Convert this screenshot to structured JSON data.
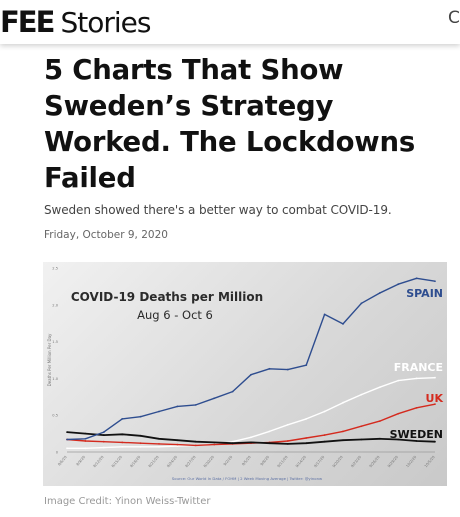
{
  "header": {
    "logo_bold": "FEE",
    "logo_text": "Stories",
    "search_glyph": "C",
    "search_icon": "search-icon"
  },
  "article": {
    "title": "5 Charts That Show Sweden’s Strategy Worked. The Lockdowns Failed",
    "subtitle": "Sweden showed there's a better way to combat COVID-19.",
    "date": "Friday, October 9, 2020",
    "image_credit": "Image Credit: Yinon Weiss-Twitter"
  },
  "chart_data": {
    "type": "line",
    "title": "COVID-19 Deaths per Million",
    "subtitle": "Aug 6 - Oct 6",
    "ylabel": "Deaths Per Million Per Day",
    "source": "Source: Our World In Data / FOHM | 2 Week Moving Average | Twitter: @yinonw",
    "ylim": [
      0,
      2.5
    ],
    "yticks": [
      "2.5",
      "2.0",
      "1.5",
      "1.0",
      "0.5",
      "0"
    ],
    "x": [
      "8/6/20",
      "8/9/20",
      "8/12/20",
      "8/15/20",
      "8/18/20",
      "8/21/20",
      "8/24/20",
      "8/27/20",
      "8/30/20",
      "9/2/20",
      "9/5/20",
      "9/8/20",
      "9/11/20",
      "9/14/20",
      "9/17/20",
      "9/20/20",
      "9/23/20",
      "9/26/20",
      "9/29/20",
      "10/2/20",
      "10/5/20"
    ],
    "series": [
      {
        "name": "SPAIN",
        "color": "#2e4d8f",
        "values": [
          0.17,
          0.18,
          0.27,
          0.45,
          0.48,
          0.55,
          0.62,
          0.64,
          0.73,
          0.82,
          1.05,
          1.13,
          1.12,
          1.18,
          1.87,
          1.74,
          2.02,
          2.16,
          2.28,
          2.36,
          2.32
        ]
      },
      {
        "name": "FRANCE",
        "color": "#ffffff",
        "values": [
          0.05,
          0.05,
          0.06,
          0.07,
          0.07,
          0.07,
          0.08,
          0.09,
          0.1,
          0.14,
          0.2,
          0.28,
          0.37,
          0.45,
          0.55,
          0.67,
          0.78,
          0.88,
          0.97,
          1.0,
          1.01
        ]
      },
      {
        "name": "UK",
        "color": "#d42a1e",
        "values": [
          0.17,
          0.15,
          0.14,
          0.13,
          0.12,
          0.11,
          0.1,
          0.09,
          0.1,
          0.11,
          0.12,
          0.13,
          0.15,
          0.19,
          0.23,
          0.28,
          0.35,
          0.42,
          0.52,
          0.6,
          0.65
        ]
      },
      {
        "name": "SWEDEN",
        "color": "#111111",
        "values": [
          0.27,
          0.25,
          0.23,
          0.24,
          0.22,
          0.18,
          0.16,
          0.14,
          0.13,
          0.12,
          0.13,
          0.12,
          0.11,
          0.12,
          0.14,
          0.16,
          0.17,
          0.18,
          0.17,
          0.15,
          0.14
        ]
      }
    ]
  }
}
